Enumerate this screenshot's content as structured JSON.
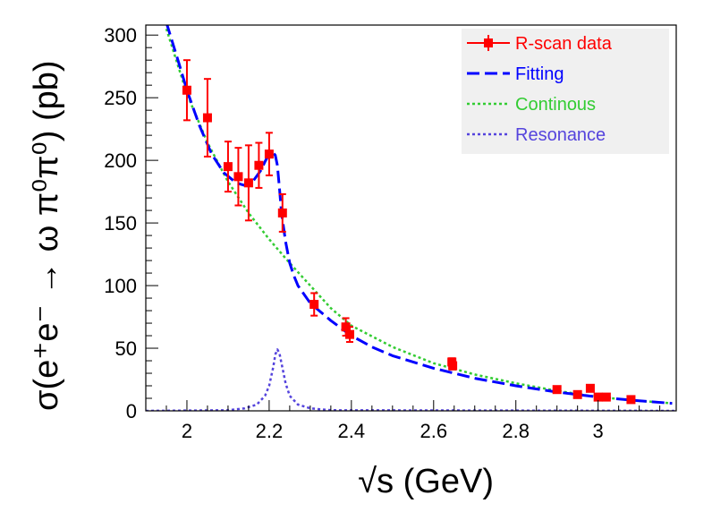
{
  "chart_data": {
    "type": "scatter",
    "xlabel": "√s (GeV)",
    "ylabel": "σ(e⁺e⁻ → ω π⁰π⁰) (pb)",
    "xlim": [
      1.9,
      3.19
    ],
    "ylim": [
      0,
      308
    ],
    "x_ticks": [
      2,
      2.2,
      2.4,
      2.6,
      2.8,
      3
    ],
    "x_tick_labels": [
      "2",
      "2.2",
      "2.4",
      "2.6",
      "2.8",
      "3"
    ],
    "y_ticks": [
      0,
      50,
      100,
      150,
      200,
      250,
      300
    ],
    "y_tick_labels": [
      "0",
      "50",
      "100",
      "150",
      "200",
      "250",
      "300"
    ],
    "grid": false,
    "legend_position": "top-right",
    "legend": [
      {
        "label": "R-scan data",
        "color": "#ff0000",
        "style": "marker"
      },
      {
        "label": "Fitting",
        "color": "#0000ff",
        "style": "dashed"
      },
      {
        "label": "Continous",
        "color": "#33cc33",
        "style": "dotted"
      },
      {
        "label": "Resonance",
        "color": "#5544dd",
        "style": "dotted"
      }
    ],
    "series": [
      {
        "name": "R-scan data",
        "color": "#ff0000",
        "points": [
          {
            "x": 2.0,
            "y": 256,
            "err": 24
          },
          {
            "x": 2.05,
            "y": 234,
            "err": 31
          },
          {
            "x": 2.1,
            "y": 195,
            "err": 20
          },
          {
            "x": 2.125,
            "y": 187,
            "err": 23
          },
          {
            "x": 2.15,
            "y": 182,
            "err": 30
          },
          {
            "x": 2.175,
            "y": 196,
            "err": 18
          },
          {
            "x": 2.2,
            "y": 205,
            "err": 17
          },
          {
            "x": 2.2324,
            "y": 158,
            "err": 15
          },
          {
            "x": 2.3094,
            "y": 85,
            "err": 9
          },
          {
            "x": 2.3864,
            "y": 67,
            "err": 7
          },
          {
            "x": 2.396,
            "y": 61,
            "err": 6
          },
          {
            "x": 2.6444,
            "y": 39,
            "err": 3
          },
          {
            "x": 2.6464,
            "y": 36,
            "err": 3
          },
          {
            "x": 2.9,
            "y": 17,
            "err": 2
          },
          {
            "x": 2.95,
            "y": 13,
            "err": 2
          },
          {
            "x": 2.981,
            "y": 18,
            "err": 2
          },
          {
            "x": 3.0,
            "y": 11,
            "err": 2
          },
          {
            "x": 3.02,
            "y": 11,
            "err": 2
          },
          {
            "x": 3.08,
            "y": 9,
            "err": 2
          }
        ]
      },
      {
        "name": "Fitting",
        "color": "#0000ff",
        "x": [
          1.95,
          1.98,
          2.0,
          2.03,
          2.06,
          2.09,
          2.12,
          2.14,
          2.16,
          2.18,
          2.19,
          2.2,
          2.21,
          2.215,
          2.22,
          2.225,
          2.23,
          2.24,
          2.25,
          2.26,
          2.27,
          2.3,
          2.35,
          2.4,
          2.45,
          2.5,
          2.6,
          2.7,
          2.8,
          2.9,
          3.0,
          3.1,
          3.18
        ],
        "y": [
          310,
          278,
          256,
          228,
          205,
          190,
          182,
          180,
          183,
          192,
          199,
          205,
          206,
          204,
          196,
          178,
          158,
          135,
          118,
          108,
          100,
          86,
          72,
          60,
          51,
          44,
          34,
          26,
          20,
          15,
          11,
          8,
          6
        ]
      },
      {
        "name": "Continous",
        "color": "#33cc33",
        "x": [
          1.95,
          2.0,
          2.05,
          2.1,
          2.15,
          2.2,
          2.25,
          2.3,
          2.35,
          2.4,
          2.5,
          2.6,
          2.7,
          2.8,
          2.9,
          3.0,
          3.1,
          3.18
        ],
        "y": [
          305,
          253,
          214,
          183,
          158,
          137,
          118,
          100,
          82,
          68,
          51,
          38,
          29,
          22,
          16,
          11,
          8,
          6
        ]
      },
      {
        "name": "Resonance",
        "color": "#5544dd",
        "x": [
          1.9,
          2.1,
          2.14,
          2.17,
          2.19,
          2.2,
          2.21,
          2.215,
          2.22,
          2.225,
          2.23,
          2.24,
          2.25,
          2.27,
          2.3,
          2.35,
          3.19
        ],
        "y": [
          0,
          0.5,
          2,
          5,
          12,
          20,
          35,
          45,
          49,
          46,
          38,
          22,
          12,
          5,
          2,
          0.5,
          0
        ]
      }
    ]
  }
}
